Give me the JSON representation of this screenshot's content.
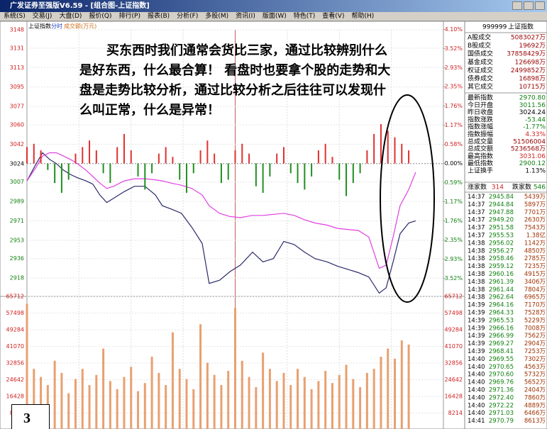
{
  "window": {
    "title": "广发证券至强版V6.59 - [组合图-上证指数]",
    "menu": [
      "系统(S)",
      "交易(J)",
      "大盘(D)",
      "报价(Q)",
      "排行(P)",
      "报表(B)",
      "分析(F)",
      "多股(M)",
      "资讯(I)",
      "版面(W)",
      "特色(T)",
      "查看(V)",
      "帮助(H)"
    ]
  },
  "chart_data": [
    {
      "type": "line",
      "header_labels": [
        "上证指数",
        "分时",
        "成交额(万元)"
      ],
      "annotation": "买东西时我们通常会货比三家，通过比较辨别什么是好东西，什么最合算！ 看盘时也要拿个股的走势和大盘是走势比较分析，通过比较分析之后往往可以发现什么叫正常，什么是异常！",
      "x": [
        0,
        5,
        9,
        13,
        17,
        21,
        25,
        29,
        34,
        38,
        42,
        46,
        50,
        56,
        62,
        68,
        74,
        78,
        83,
        89,
        95,
        101,
        105,
        111,
        117,
        123,
        130,
        136,
        142,
        148,
        154,
        160,
        166,
        173,
        179,
        185,
        191,
        197,
        203,
        207,
        211,
        215,
        220,
        224
      ],
      "xlim": [
        0,
        240
      ],
      "ylim": [
        2901,
        3148
      ],
      "yticks": [
        3148,
        3131,
        3113,
        3095,
        3077,
        3060,
        3042,
        3024,
        3007,
        2989,
        2971,
        2953,
        2936,
        2918
      ],
      "y2lim": [
        -4.07,
        4.09
      ],
      "y2ticks": [
        {
          "value": 4.1,
          "label": "4.10%"
        },
        {
          "value": 3.52,
          "label": "3.52%"
        },
        {
          "value": 2.93,
          "label": "2.93%"
        },
        {
          "value": 2.35,
          "label": "2.35%"
        },
        {
          "value": 1.76,
          "label": "1.76%"
        },
        {
          "value": 1.17,
          "label": "1.17%"
        },
        {
          "value": 0.58,
          "label": "0.58%"
        },
        {
          "value": 0,
          "label": "0.00%"
        },
        {
          "value": -0.59,
          "label": "0.59%"
        },
        {
          "value": -1.17,
          "label": "1.17%"
        },
        {
          "value": -1.76,
          "label": "1.76%"
        },
        {
          "value": -2.35,
          "label": "2.35%"
        },
        {
          "value": -2.93,
          "label": "2.93%"
        },
        {
          "value": -3.52,
          "label": "3.52%"
        }
      ],
      "grid": true,
      "series": [
        {
          "color": "#2a2a6a",
          "values": [
            3008,
            3023,
            3034,
            3028,
            3024,
            3018,
            3014,
            3011,
            3008,
            3005,
            2995,
            2988,
            2992,
            2998,
            3003,
            3003,
            2995,
            2985,
            2982,
            2978,
            2965,
            2950,
            2913,
            2916,
            2924,
            2930,
            2942,
            2933,
            2936,
            2952,
            2949,
            2942,
            2936,
            2933,
            2929,
            2926,
            2923,
            2919,
            2904,
            2909,
            2933,
            2959,
            2969,
            2971
          ]
        },
        {
          "color": "#e040e0",
          "values": [
            3008,
            3020,
            3031,
            3034,
            3034,
            3031,
            3028,
            3024,
            3018,
            3012,
            3006,
            3001,
            3003,
            3008,
            3010,
            3010,
            3009,
            3008,
            3006,
            3004,
            3001,
            2995,
            2985,
            2978,
            2975,
            2974,
            2976,
            2976,
            2977,
            2978,
            2976,
            2972,
            2969,
            2967,
            2964,
            2963,
            2962,
            2956,
            2927,
            2930,
            2956,
            2985,
            3000,
            3016
          ]
        },
        {
          "type": "bar",
          "axis": "y2",
          "color": "#e03030",
          "negative_color": "#209020",
          "x": [
            0,
            4,
            8,
            12,
            16,
            20,
            24,
            28,
            32,
            36,
            40,
            44,
            48,
            52,
            56,
            60,
            64,
            68,
            72,
            76,
            80,
            84,
            88,
            92,
            96,
            100,
            104,
            108,
            112,
            116,
            120,
            124,
            128,
            132,
            136,
            140,
            144,
            148,
            152,
            156,
            160,
            164,
            168,
            172,
            176,
            180,
            184,
            188,
            192,
            196,
            200,
            204,
            208,
            212,
            216,
            220
          ],
          "values": [
            0.5,
            0.6,
            0.4,
            -0.2,
            -0.6,
            -0.9,
            -0.5,
            0.3,
            0.5,
            0.7,
            0.4,
            -0.3,
            -0.6,
            0.5,
            0.9,
            0.4,
            -0.4,
            -0.8,
            -0.3,
            0.3,
            0.5,
            0.2,
            -0.5,
            -0.9,
            -0.3,
            0.4,
            0.7,
            0.3,
            -0.6,
            -0.5,
            0.4,
            0.6,
            0.3,
            -0.7,
            -0.9,
            -0.4,
            0.3,
            0.5,
            -0.3,
            -0.6,
            -0.8,
            -0.4,
            0.4,
            0.6,
            0.2,
            -0.5,
            -1.0,
            -0.6,
            -0.3,
            0.4,
            0.9,
            1.2,
            1.0,
            0.8,
            0.6,
            0.4
          ]
        }
      ]
    },
    {
      "type": "bar",
      "color": "#e8a070",
      "x": [
        0,
        4,
        8,
        12,
        16,
        20,
        24,
        28,
        32,
        36,
        40,
        44,
        48,
        52,
        56,
        60,
        64,
        68,
        72,
        76,
        80,
        84,
        88,
        92,
        96,
        100,
        104,
        108,
        112,
        116,
        120,
        124,
        128,
        132,
        136,
        140,
        144,
        148,
        152,
        156,
        160,
        164,
        168,
        172,
        176,
        180,
        184,
        188,
        192,
        196,
        200,
        204,
        208,
        212,
        216,
        220
      ],
      "xlim": [
        0,
        240
      ],
      "values": [
        62000,
        30000,
        26000,
        22000,
        34000,
        28000,
        18000,
        25000,
        30000,
        22000,
        27000,
        40000,
        24000,
        20000,
        26000,
        31000,
        19000,
        23000,
        36000,
        28000,
        22000,
        48000,
        30000,
        25000,
        20000,
        52000,
        33000,
        27000,
        22000,
        29000,
        60000,
        34000,
        26000,
        21000,
        38000,
        30000,
        24000,
        28000,
        22000,
        30000,
        26000,
        20000,
        24000,
        29000,
        23000,
        27000,
        32000,
        25000,
        21000,
        28000,
        30000,
        36000,
        40000,
        35000,
        44000,
        42000
      ],
      "ylim": [
        0,
        65712
      ],
      "yticks": [
        65712,
        57498,
        49284,
        41070,
        32856,
        24642,
        16428,
        8214
      ],
      "grid": true
    }
  ],
  "figure_label": "3",
  "quote_panel": {
    "code": "999999",
    "name": "上证指数",
    "rows": [
      [
        "A股成交",
        "5083027万"
      ],
      [
        "B股成交",
        "19692万"
      ],
      [
        "国债成交",
        "37858429万"
      ],
      [
        "基金成交",
        "126698万"
      ],
      [
        "权证成交",
        "2499852万"
      ],
      [
        "债券成交",
        "16898万"
      ],
      [
        "其它成交",
        "10715万"
      ],
      [
        "最新指数",
        "2970.80"
      ],
      [
        "今日开盘",
        "3011.56"
      ],
      [
        "昨日收盘",
        "3024.24"
      ],
      [
        "指数涨跌",
        "-53.44"
      ],
      [
        "指数涨幅",
        "-1.77%"
      ],
      [
        "指数振幅",
        "4.33%"
      ],
      [
        "总成交量",
        "51506004"
      ],
      [
        "总成交额",
        "5236568万"
      ],
      [
        "最高指数",
        "3031.06"
      ],
      [
        "最低指数",
        "2900.12"
      ],
      [
        "上证换手",
        "1.13%"
      ]
    ],
    "breadth": [
      "涨家数",
      "314",
      "跌家数",
      "546"
    ]
  },
  "ticks": {
    "rows": [
      [
        "14:37",
        "2945.84",
        "5439万"
      ],
      [
        "14:37",
        "2944.84",
        "5897万"
      ],
      [
        "14:37",
        "2947.88",
        "7701万"
      ],
      [
        "14:37",
        "2949.20",
        "2630万"
      ],
      [
        "14:37",
        "2951.58",
        "7543万"
      ],
      [
        "14:37",
        "2955.53",
        "1.38亿"
      ],
      [
        "14:38",
        "2956.02",
        "1142万"
      ],
      [
        "14:38",
        "2956.27",
        "4850万"
      ],
      [
        "14:38",
        "2958.46",
        "2785万"
      ],
      [
        "14:38",
        "2959.12",
        "7235万"
      ],
      [
        "14:38",
        "2960.16",
        "4915万"
      ],
      [
        "14:38",
        "2961.39",
        "3406万"
      ],
      [
        "14:38",
        "2961.44",
        "7804万"
      ],
      [
        "14:38",
        "2962.64",
        "6965万"
      ],
      [
        "14:39",
        "2964.16",
        "7170万"
      ],
      [
        "14:39",
        "2964.33",
        "7528万"
      ],
      [
        "14:39",
        "2965.53",
        "5229万"
      ],
      [
        "14:39",
        "2966.16",
        "7008万"
      ],
      [
        "14:39",
        "2966.99",
        "7562万"
      ],
      [
        "14:39",
        "2969.27",
        "2904万"
      ],
      [
        "14:39",
        "2968.41",
        "7253万"
      ],
      [
        "14:40",
        "2969.55",
        "7302万"
      ],
      [
        "14:40",
        "2970.65",
        "4563万"
      ],
      [
        "14:40",
        "2970.60",
        "5732万"
      ],
      [
        "14:40",
        "2969.76",
        "5652万"
      ],
      [
        "14:40",
        "2971.36",
        "2404万"
      ],
      [
        "14:40",
        "2972.40",
        "7860万"
      ],
      [
        "14:40",
        "2972.22",
        "4889万"
      ],
      [
        "14:40",
        "2971.03",
        "6466万"
      ],
      [
        "14:41",
        "2970.79",
        "8613万"
      ]
    ]
  }
}
